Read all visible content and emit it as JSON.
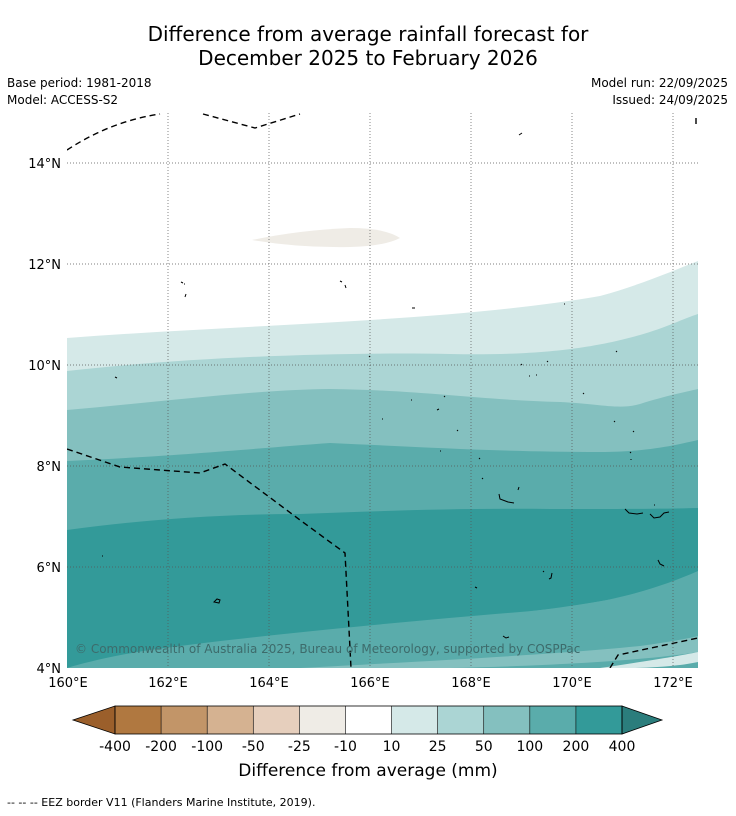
{
  "title_line1": "Difference from average rainfall forecast for",
  "title_line2": "December 2025 to February 2026",
  "base_period": "Base period: 1981-2018",
  "model": "Model: ACCESS-S2",
  "model_run": "Model run: 22/09/2025",
  "issued": "Issued: 24/09/2025",
  "copyright": "© Commonwealth of Australia 2025, Bureau of Meteorology, supported by COSPPac",
  "lat_labels": [
    "14°N",
    "12°N",
    "10°N",
    "8°N",
    "6°N",
    "4°N"
  ],
  "lon_labels": [
    "160°E",
    "162°E",
    "164°E",
    "166°E",
    "168°E",
    "170°E",
    "172°E"
  ],
  "colorbar": {
    "ticks": [
      "-400",
      "-200",
      "-100",
      "-50",
      "-25",
      "-10",
      "10",
      "25",
      "50",
      "100",
      "200",
      "400"
    ],
    "colors": [
      "#9b5f2b",
      "#b07840",
      "#c29568",
      "#d5b291",
      "#e6cfbd",
      "#efece6",
      "#ffffff",
      "#d5e9e8",
      "#abd5d4",
      "#84c0bf",
      "#5aacab",
      "#339a99",
      "#2b7d7c"
    ],
    "label": "Difference from average (mm)"
  },
  "footnote": "--  --  -- EEZ border V11 (Flanders Marine Institute, 2019)."
}
